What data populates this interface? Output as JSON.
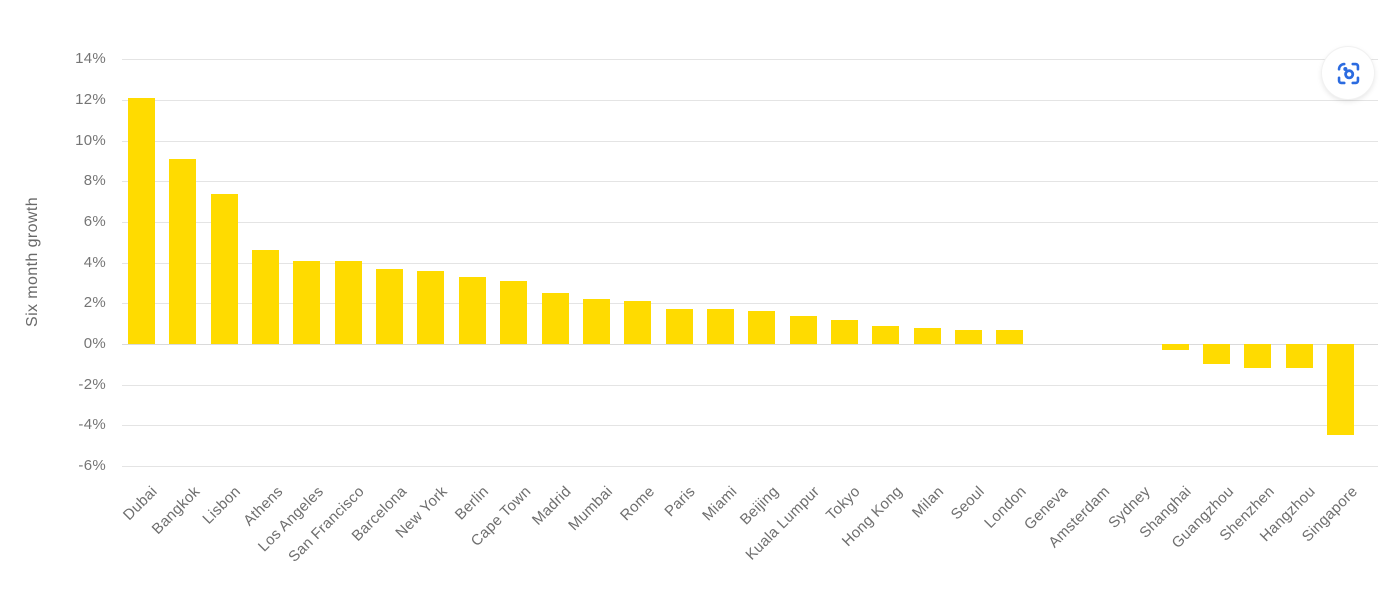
{
  "chart_data": {
    "type": "bar",
    "title": "",
    "xlabel": "",
    "ylabel": "Six month growth",
    "categories": [
      "Dubai",
      "Bangkok",
      "Lisbon",
      "Athens",
      "Los Angeles",
      "San Francisco",
      "Barcelona",
      "New York",
      "Berlin",
      "Cape Town",
      "Madrid",
      "Mumbai",
      "Rome",
      "Paris",
      "Miami",
      "Beijing",
      "Kuala Lumpur",
      "Tokyo",
      "Hong Kong",
      "Milan",
      "Seoul",
      "London",
      "Geneva",
      "Amsterdam",
      "Sydney",
      "Shanghai",
      "Guangzhou",
      "Shenzhen",
      "Hangzhou",
      "Singapore"
    ],
    "values": [
      12.1,
      9.1,
      7.4,
      4.6,
      4.1,
      4.1,
      3.7,
      3.6,
      3.3,
      3.1,
      2.5,
      2.2,
      2.1,
      1.7,
      1.7,
      1.6,
      1.4,
      1.2,
      0.9,
      0.8,
      0.7,
      0.7,
      0,
      0,
      0,
      -0.3,
      -1.0,
      -1.2,
      -1.2,
      -4.5
    ],
    "value_unit": "%",
    "ylim": [
      -6,
      14
    ],
    "ytick_step": 2,
    "ytick_labels": [
      "14%",
      "12%",
      "10%",
      "8%",
      "6%",
      "4%",
      "2%",
      "0%",
      "-2%",
      "-4%",
      "-6%"
    ],
    "grid": true,
    "legend": "none",
    "bar_color": "#ffdb00"
  },
  "toolbar": {
    "lens_button": {
      "icon": "google-lens-icon",
      "color": "#2b6be0"
    }
  },
  "colors": {
    "background": "#ffffff",
    "gridline": "#e4e4e4",
    "zero_line": "#dadada",
    "tick_text": "#757575",
    "x_label_text": "#6e6e6e",
    "axis_title_text": "#696969"
  }
}
